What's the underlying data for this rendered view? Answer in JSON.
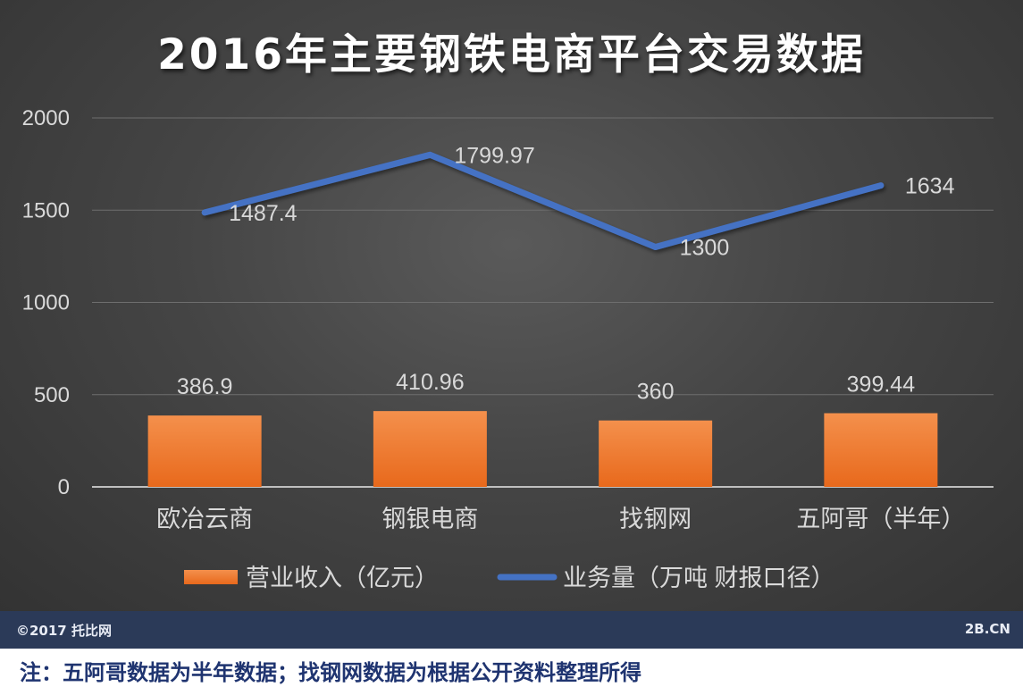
{
  "chart_data": {
    "type": "bar+line",
    "title": "2016年主要钢铁电商平台交易数据",
    "categories": [
      "欧冶云商",
      "钢银电商",
      "找钢网",
      "五阿哥（半年）"
    ],
    "ylim": [
      0,
      2000
    ],
    "yticks": [
      "0",
      "500",
      "1000",
      "1500",
      "2000"
    ],
    "grid": true,
    "legend_position": "bottom",
    "series": [
      {
        "name": "营业收入（亿元）",
        "type": "bar",
        "color": "#f07a2a",
        "values": [
          386.9,
          410.96,
          360,
          399.44
        ],
        "labels": [
          "386.9",
          "410.96",
          "360",
          "399.44"
        ]
      },
      {
        "name": "业务量（万吨 财报口径）",
        "type": "line",
        "color": "#4472c4",
        "values": [
          1487.4,
          1799.97,
          1300,
          1634
        ],
        "labels": [
          "1487.4",
          "1799.97",
          "1300",
          "1634"
        ]
      }
    ]
  },
  "footer": {
    "copyright": "©2017 托比网",
    "site": "2B.CN"
  },
  "note": "注：五阿哥数据为半年数据；找钢网数据为根据公开资料整理所得"
}
